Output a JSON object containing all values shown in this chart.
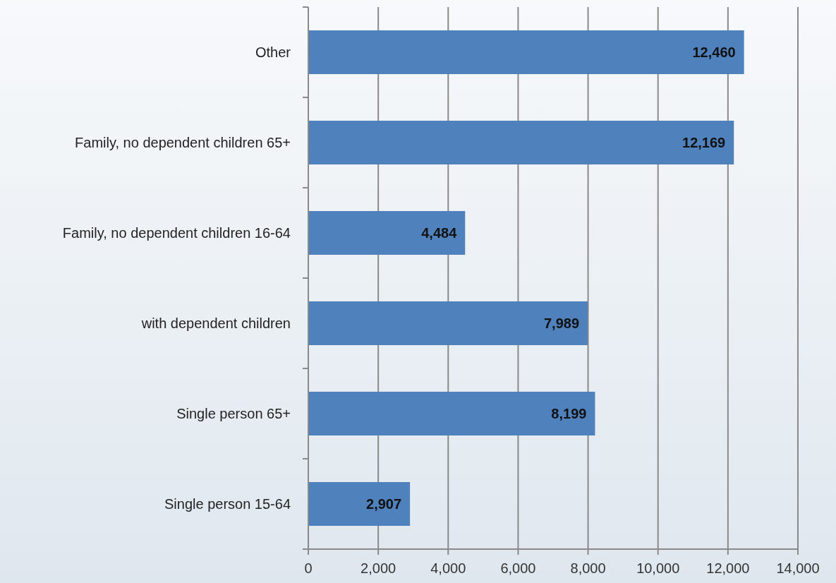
{
  "chart_data": {
    "type": "bar",
    "orientation": "horizontal",
    "categories": [
      "Other",
      "Family, no dependent children 65+",
      "Family, no dependent children 16-64",
      "with dependent children",
      "Single person 65+",
      "Single person 15-64"
    ],
    "values": [
      12460,
      12169,
      4484,
      7989,
      8199,
      2907
    ],
    "color": "#4f81bd",
    "xlim": [
      0,
      14000
    ],
    "xticks": [
      {
        "value": 0,
        "label": "0"
      },
      {
        "value": 2000,
        "label": "2,000"
      },
      {
        "value": 4000,
        "label": "4,000"
      },
      {
        "value": 6000,
        "label": "6,000"
      },
      {
        "value": 8000,
        "label": "8,000"
      },
      {
        "value": 10000,
        "label": "10,000"
      },
      {
        "value": 12000,
        "label": "12,000"
      },
      {
        "value": 14000,
        "label": "14,000"
      }
    ],
    "value_labels": [
      "12,460",
      "12,169",
      "4,484",
      "7,989",
      "8,199",
      "2,907"
    ],
    "grid": "x"
  }
}
